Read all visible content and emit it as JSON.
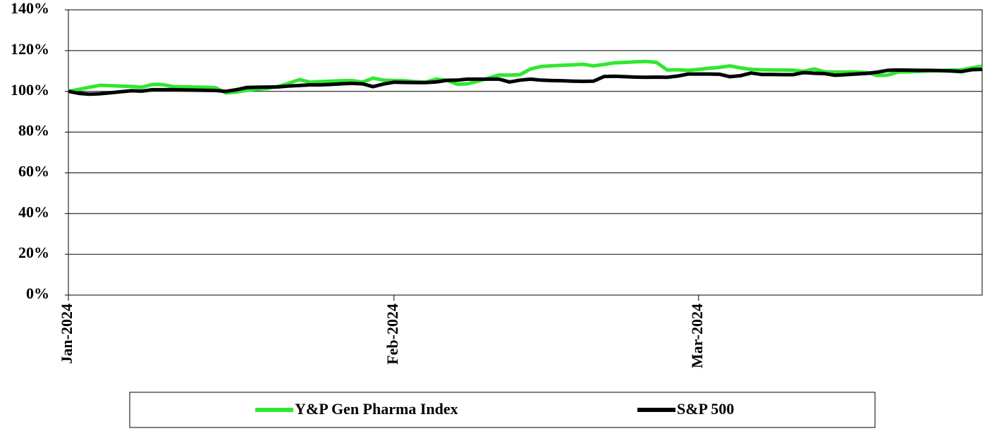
{
  "chart_data": {
    "type": "line",
    "categories": [
      "Jan-2024",
      null,
      null,
      null,
      null,
      null,
      null,
      null,
      null,
      null,
      null,
      null,
      null,
      null,
      null,
      null,
      null,
      null,
      null,
      null,
      null,
      null,
      null,
      null,
      null,
      null,
      null,
      null,
      null,
      null,
      null,
      "Feb-2024",
      null,
      null,
      null,
      null,
      null,
      null,
      null,
      null,
      null,
      null,
      null,
      null,
      null,
      null,
      null,
      null,
      null,
      null,
      null,
      null,
      null,
      null,
      null,
      null,
      null,
      null,
      null,
      null,
      "Mar-2024",
      null,
      null,
      null,
      null,
      null,
      null,
      null,
      null,
      null,
      null,
      null,
      null,
      null,
      null,
      null,
      null,
      null,
      null,
      null,
      null,
      null,
      null,
      null,
      null,
      null,
      null,
      null
    ],
    "series": [
      {
        "name": "Y&P Gen Pharma Index",
        "color": "#2ee82e",
        "values": [
          100,
          101,
          102,
          103,
          102.8,
          102.6,
          102.4,
          102,
          103.4,
          103.3,
          102.3,
          102.2,
          102.1,
          102,
          101.8,
          99.2,
          99.7,
          100.5,
          101,
          101.5,
          102.5,
          104,
          105.8,
          104.5,
          104.8,
          105,
          105.2,
          105.3,
          104.5,
          106.5,
          105.5,
          105.3,
          105.2,
          104.8,
          104.5,
          106,
          105.5,
          103.5,
          103.7,
          105,
          106.5,
          108,
          108,
          108.2,
          111,
          112.2,
          112.5,
          112.8,
          113,
          113.3,
          112.5,
          113.2,
          114,
          114.2,
          114.5,
          114.7,
          114.2,
          110.5,
          110.6,
          110.3,
          110.8,
          111.3,
          111.8,
          112.5,
          111.5,
          110.8,
          110.6,
          110.5,
          110.5,
          110.4,
          109.8,
          111,
          109.6,
          109.5,
          109.5,
          109.5,
          109.3,
          107.8,
          108,
          109.5,
          109.6,
          109.8,
          110,
          110.2,
          110.5,
          110.5,
          111.5,
          112.3
        ]
      },
      {
        "name": "S&P 500",
        "color": "#000000",
        "values": [
          100,
          99,
          98.6,
          98.8,
          99.3,
          99.8,
          100.3,
          100.1,
          100.8,
          100.8,
          100.8,
          100.7,
          100.6,
          100.5,
          100.4,
          100,
          100.8,
          101.9,
          102,
          102.1,
          102.2,
          102.6,
          102.9,
          103.2,
          103.2,
          103.4,
          103.7,
          103.9,
          103.7,
          102.3,
          103.6,
          104.5,
          104.4,
          104.3,
          104.3,
          104.6,
          105.4,
          105.5,
          106,
          106,
          106,
          106,
          104.6,
          105.5,
          106,
          105.5,
          105.3,
          105.2,
          105,
          104.9,
          105,
          107.3,
          107.4,
          107.2,
          107,
          106.9,
          107,
          106.9,
          107.5,
          108.5,
          108.5,
          108.5,
          108.4,
          107.2,
          107.7,
          109,
          108.3,
          108.3,
          108.2,
          108.2,
          109.2,
          108.9,
          108.7,
          107.9,
          108.2,
          108.5,
          108.8,
          109.4,
          110.3,
          110.5,
          110.4,
          110.3,
          110.3,
          110.2,
          110,
          109.7,
          110.6,
          110.8
        ]
      }
    ],
    "ylim": [
      0,
      140
    ],
    "yticks": [
      {
        "value": 0,
        "label": "0%"
      },
      {
        "value": 20,
        "label": "20%"
      },
      {
        "value": 40,
        "label": "40%"
      },
      {
        "value": 60,
        "label": "60%"
      },
      {
        "value": 80,
        "label": "80%"
      },
      {
        "value": 100,
        "label": "100%"
      },
      {
        "value": 120,
        "label": "120%"
      },
      {
        "value": 140,
        "label": "140%"
      }
    ],
    "grid": true,
    "legend": "bottom"
  }
}
